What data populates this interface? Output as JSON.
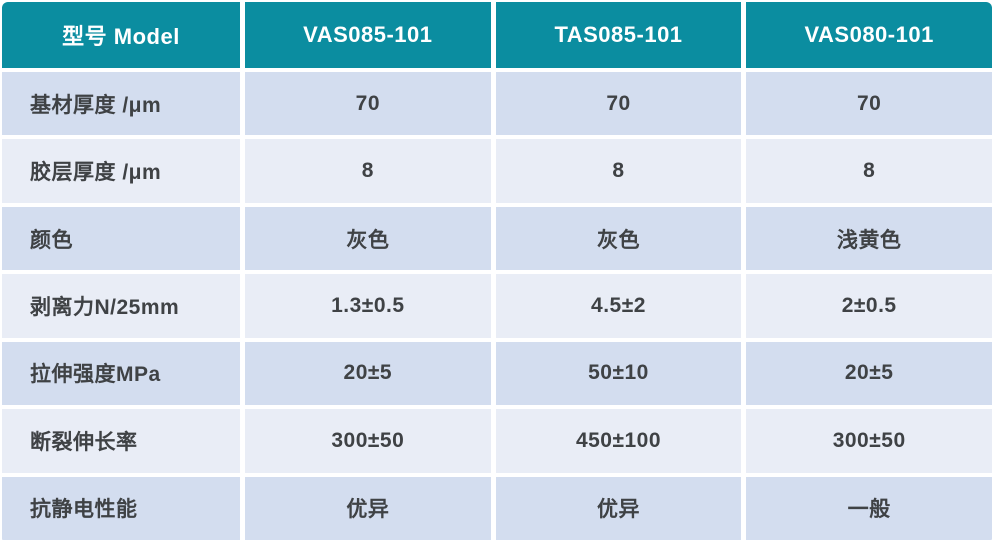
{
  "table": {
    "header": {
      "model_label": "型号 Model",
      "columns": [
        "VAS085-101",
        "TAS085-101",
        "VAS080-101"
      ]
    },
    "rows": [
      {
        "label": "基材厚度 /μm",
        "values": [
          "70",
          "70",
          "70"
        ]
      },
      {
        "label": "胶层厚度 /μm",
        "values": [
          "8",
          "8",
          "8"
        ]
      },
      {
        "label": "颜色",
        "values": [
          "灰色",
          "灰色",
          "浅黄色"
        ]
      },
      {
        "label": "剥离力N/25mm",
        "values": [
          "1.3±0.5",
          "4.5±2",
          "2±0.5"
        ]
      },
      {
        "label": "拉伸强度MPa",
        "values": [
          "20±5",
          "50±10",
          "20±5"
        ]
      },
      {
        "label": "断裂伸长率",
        "values": [
          "300±50",
          "450±100",
          "300±50"
        ]
      },
      {
        "label": "抗静电性能",
        "values": [
          "优异",
          "优异",
          "一般"
        ]
      }
    ],
    "colors": {
      "header_bg": "#0b8da0",
      "header_text": "#ffffff",
      "row_odd_bg": "#d3ddef",
      "row_even_bg": "#e9edf6",
      "body_text": "#3f4245",
      "grid_line": "#ffffff"
    }
  }
}
